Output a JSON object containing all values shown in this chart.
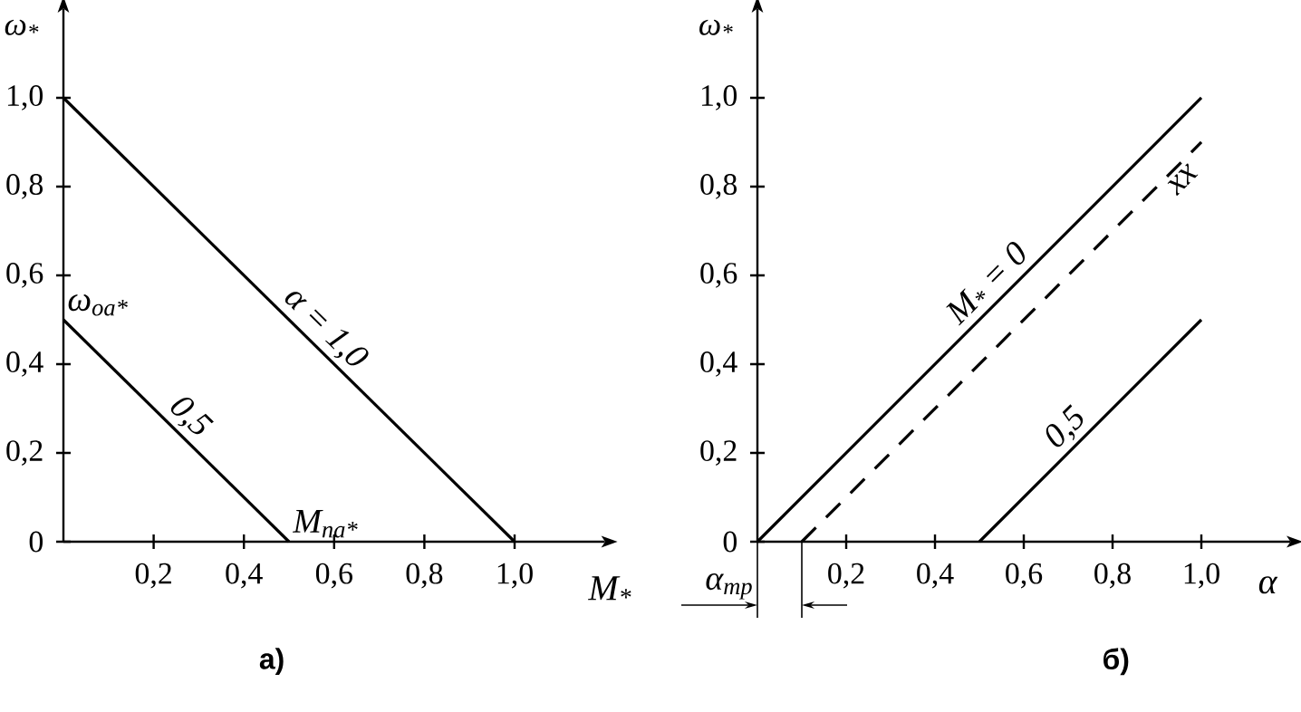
{
  "chart_data": [
    {
      "type": "line",
      "title": "а)",
      "xlabel": "M$_{*}$",
      "ylabel": "ω$_{*}$",
      "xlim": [
        0,
        1.2
      ],
      "ylim": [
        0,
        1.2
      ],
      "xticks": [
        {
          "value": 0.2,
          "label": "0,2"
        },
        {
          "value": 0.4,
          "label": "0,4"
        },
        {
          "value": 0.6,
          "label": "0,6"
        },
        {
          "value": 0.8,
          "label": "0,8"
        },
        {
          "value": 1.0,
          "label": "1,0"
        }
      ],
      "yticks": [
        0,
        {
          "value": 0.2,
          "label": "0,2"
        },
        {
          "value": 0.4,
          "label": "0,4"
        },
        {
          "value": 0.6,
          "label": "0,6"
        },
        {
          "value": 0.8,
          "label": "0,8"
        },
        {
          "value": 1.0,
          "label": "1,0"
        }
      ],
      "series": [
        {
          "name": "α = 1,0",
          "color": "#000000",
          "x": [
            0,
            1.0
          ],
          "values": [
            1.0,
            0
          ]
        },
        {
          "name": "0,5",
          "color": "#000000",
          "x": [
            0,
            0.5
          ],
          "values": [
            0.5,
            0
          ]
        }
      ],
      "annotations": [
        {
          "text": "ω$_{оа*}$",
          "x": 0,
          "y": 0.5
        },
        {
          "text": "M$_{па*}$",
          "x": 0.5,
          "y": 0
        }
      ]
    },
    {
      "type": "line",
      "title": "б)",
      "xlabel": "α",
      "ylabel": "ω$_{*}$",
      "xlim": [
        0,
        1.2
      ],
      "ylim": [
        0,
        1.2
      ],
      "xticks": [
        {
          "value": 0.2,
          "label": "0,2"
        },
        {
          "value": 0.4,
          "label": "0,4"
        },
        {
          "value": 0.6,
          "label": "0,6"
        },
        {
          "value": 0.8,
          "label": "0,8"
        },
        {
          "value": 1.0,
          "label": "1,0"
        }
      ],
      "yticks": [
        0,
        {
          "value": 0.2,
          "label": "0,2"
        },
        {
          "value": 0.4,
          "label": "0,4"
        },
        {
          "value": 0.6,
          "label": "0,6"
        },
        {
          "value": 0.8,
          "label": "0,8"
        },
        {
          "value": 1.0,
          "label": "1,0"
        }
      ],
      "series": [
        {
          "name": "M$_{*}$ = 0",
          "color": "#000000",
          "x": [
            0,
            1.0
          ],
          "values": [
            0,
            1.0
          ]
        },
        {
          "name": "xx",
          "color": "#000000",
          "line_style": "dashed",
          "x": [
            0.1,
            1.0
          ],
          "values": [
            0,
            0.9
          ]
        },
        {
          "name": "0,5",
          "color": "#000000",
          "x": [
            0.5,
            1.0
          ],
          "values": [
            0,
            0.5
          ]
        }
      ],
      "annotations": [
        {
          "text": "α$_{тр}$",
          "x": 0.1,
          "y": 0
        }
      ]
    }
  ]
}
